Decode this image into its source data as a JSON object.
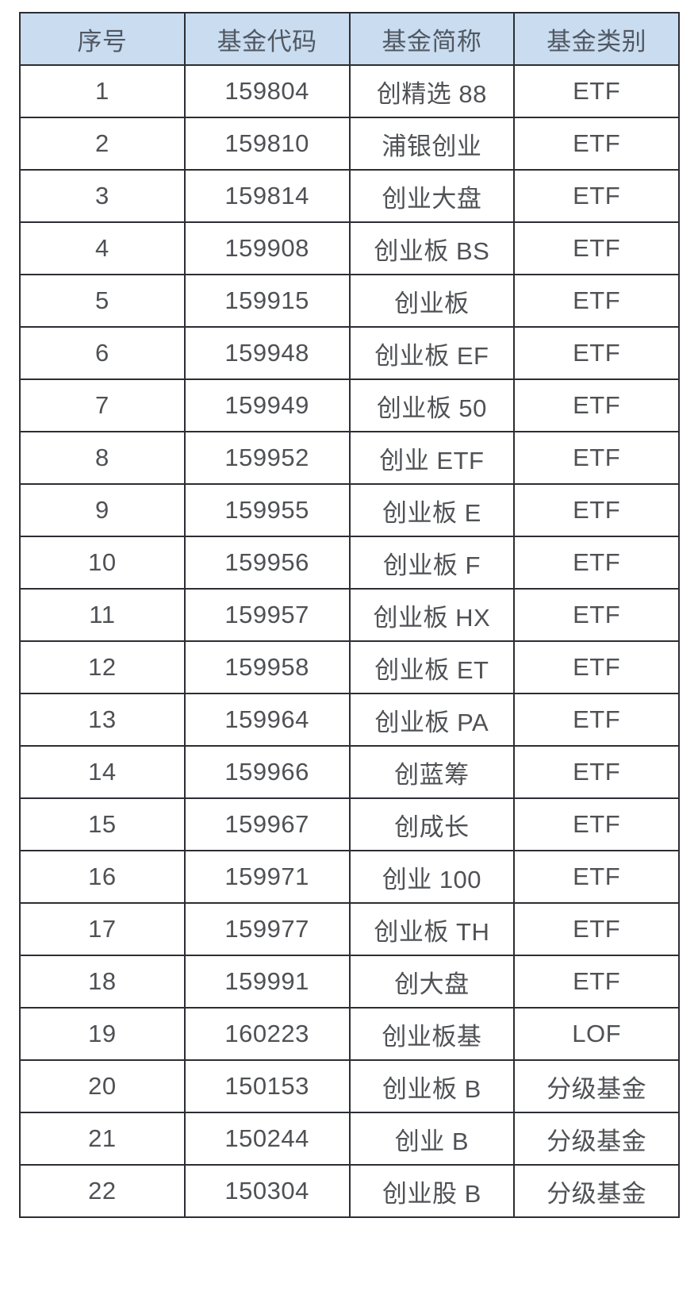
{
  "chart_data": {
    "type": "table",
    "columns": [
      "序号",
      "基金代码",
      "基金简称",
      "基金类别"
    ],
    "rows": [
      [
        "1",
        "159804",
        "创精选 88",
        "ETF"
      ],
      [
        "2",
        "159810",
        "浦银创业",
        "ETF"
      ],
      [
        "3",
        "159814",
        "创业大盘",
        "ETF"
      ],
      [
        "4",
        "159908",
        "创业板 BS",
        "ETF"
      ],
      [
        "5",
        "159915",
        "创业板",
        "ETF"
      ],
      [
        "6",
        "159948",
        "创业板 EF",
        "ETF"
      ],
      [
        "7",
        "159949",
        "创业板 50",
        "ETF"
      ],
      [
        "8",
        "159952",
        "创业 ETF",
        "ETF"
      ],
      [
        "9",
        "159955",
        "创业板 E",
        "ETF"
      ],
      [
        "10",
        "159956",
        "创业板 F",
        "ETF"
      ],
      [
        "11",
        "159957",
        "创业板 HX",
        "ETF"
      ],
      [
        "12",
        "159958",
        "创业板 ET",
        "ETF"
      ],
      [
        "13",
        "159964",
        "创业板 PA",
        "ETF"
      ],
      [
        "14",
        "159966",
        "创蓝筹",
        "ETF"
      ],
      [
        "15",
        "159967",
        "创成长",
        "ETF"
      ],
      [
        "16",
        "159971",
        "创业 100",
        "ETF"
      ],
      [
        "17",
        "159977",
        "创业板 TH",
        "ETF"
      ],
      [
        "18",
        "159991",
        "创大盘",
        "ETF"
      ],
      [
        "19",
        "160223",
        "创业板基",
        "LOF"
      ],
      [
        "20",
        "150153",
        "创业板 B",
        "分级基金"
      ],
      [
        "21",
        "150244",
        "创业 B",
        "分级基金"
      ],
      [
        "22",
        "150304",
        "创业股 B",
        "分级基金"
      ]
    ],
    "layout_hints": {
      "grid": "on",
      "column_alignment": "center",
      "header_style": "filled"
    }
  },
  "colors": {
    "page_bg": "#ffffff",
    "cell_bg": "#ffffff",
    "header_bg": "#c9dcf0",
    "border": "#2c2e33",
    "text": "#4f5155",
    "header_text": "#515862"
  }
}
